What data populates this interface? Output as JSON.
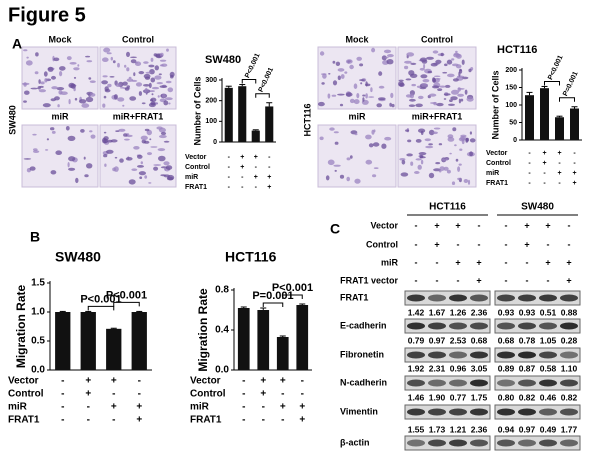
{
  "figure_title": "Figure 5",
  "panels": [
    "A",
    "B",
    "C"
  ],
  "images": [
    {
      "cell_line": "SW480",
      "labels": [
        "Mock",
        "Control",
        "miR",
        "miR+FRAT1"
      ]
    },
    {
      "cell_line": "HCT116",
      "labels": [
        "Mock",
        "Control",
        "miR",
        "miR+FRAT1"
      ]
    }
  ],
  "chart_data": [
    {
      "type": "bar",
      "title": "SW480",
      "ylabel": "Number of Cells",
      "values": [
        262,
        270,
        55,
        172
      ],
      "errors": [
        8,
        8,
        4,
        18
      ],
      "color": "#111111",
      "ylim": [
        0,
        300
      ],
      "yticks": [
        0,
        100,
        200,
        300
      ],
      "annotations": [
        "P<0.001",
        "P<0.001"
      ],
      "conditions": [
        {
          "name": "Vector",
          "marks": [
            "-",
            "+",
            "+",
            "-"
          ]
        },
        {
          "name": "Control",
          "marks": [
            "-",
            "+",
            "-",
            "-"
          ]
        },
        {
          "name": "miR",
          "marks": [
            "-",
            "-",
            "+",
            "+"
          ]
        },
        {
          "name": "FRAT1",
          "marks": [
            "-",
            "-",
            "-",
            "+"
          ]
        }
      ]
    },
    {
      "type": "bar",
      "title": "HCT116",
      "ylabel": "Number of Cells",
      "values": [
        128,
        148,
        65,
        90
      ],
      "errors": [
        8,
        5,
        3,
        5
      ],
      "color": "#111111",
      "ylim": [
        0,
        200
      ],
      "yticks": [
        0,
        50,
        100,
        150,
        200
      ],
      "annotations": [
        "P<0.001",
        "P=0.001"
      ],
      "conditions": [
        {
          "name": "Vector",
          "marks": [
            "-",
            "+",
            "+",
            "-"
          ]
        },
        {
          "name": "Control",
          "marks": [
            "-",
            "+",
            "-",
            "-"
          ]
        },
        {
          "name": "miR",
          "marks": [
            "-",
            "-",
            "+",
            "+"
          ]
        },
        {
          "name": "FRAT1",
          "marks": [
            "-",
            "-",
            "-",
            "+"
          ]
        }
      ]
    },
    {
      "type": "bar",
      "title": "SW480",
      "ylabel": "Migration Rate",
      "values": [
        1.0,
        1.0,
        0.71,
        1.0
      ],
      "errors": [
        0.01,
        0.01,
        0.01,
        0.01
      ],
      "color": "#111111",
      "ylim": [
        0,
        1.5
      ],
      "yticks": [
        {
          "value": 0,
          "label": "0.0"
        },
        {
          "value": 0.5,
          "label": "0.5"
        },
        {
          "value": 1,
          "label": "1.0"
        },
        {
          "value": 1.5,
          "label": "1.5"
        }
      ],
      "annotations": [
        "P<0.001",
        "P<0.001"
      ],
      "conditions": [
        {
          "name": "Vector",
          "marks": [
            "-",
            "+",
            "+",
            "-"
          ]
        },
        {
          "name": "Control",
          "marks": [
            "-",
            "+",
            "-",
            "-"
          ]
        },
        {
          "name": "miR",
          "marks": [
            "-",
            "-",
            "+",
            "+"
          ]
        },
        {
          "name": "FRAT1",
          "marks": [
            "-",
            "-",
            "-",
            "+"
          ]
        }
      ]
    },
    {
      "type": "bar",
      "title": "HCT116",
      "ylabel": "Migration Rate",
      "values": [
        0.62,
        0.6,
        0.33,
        0.65
      ],
      "errors": [
        0.01,
        0.02,
        0.01,
        0.01
      ],
      "color": "#111111",
      "ylim": [
        0,
        0.8
      ],
      "yticks": [
        {
          "value": 0,
          "label": "0.0"
        },
        {
          "value": 0.4,
          "label": "0.4"
        },
        {
          "value": 0.8,
          "label": "0.8"
        }
      ],
      "annotations": [
        "P=0.001",
        "P<0.001"
      ],
      "conditions": [
        {
          "name": "Vector",
          "marks": [
            "-",
            "+",
            "+",
            "-"
          ]
        },
        {
          "name": "Control",
          "marks": [
            "-",
            "+",
            "-",
            "-"
          ]
        },
        {
          "name": "miR",
          "marks": [
            "-",
            "-",
            "+",
            "+"
          ]
        },
        {
          "name": "FRAT1",
          "marks": [
            "-",
            "-",
            "-",
            "+"
          ]
        }
      ]
    }
  ],
  "blot": {
    "groups": [
      "HCT116",
      "SW480"
    ],
    "conditions": [
      {
        "name": "Vector",
        "marks": [
          [
            "-",
            "+",
            "+",
            "-"
          ],
          [
            "-",
            "+",
            "+",
            "-"
          ]
        ]
      },
      {
        "name": "Control",
        "marks": [
          [
            "-",
            "+",
            "-",
            "-"
          ],
          [
            "-",
            "+",
            "-",
            "-"
          ]
        ]
      },
      {
        "name": "miR",
        "marks": [
          [
            "-",
            "-",
            "+",
            "+"
          ],
          [
            "-",
            "-",
            "+",
            "+"
          ]
        ]
      },
      {
        "name": "FRAT1 vector",
        "marks": [
          [
            "-",
            "-",
            "-",
            "+"
          ],
          [
            "-",
            "-",
            "-",
            "+"
          ]
        ]
      }
    ],
    "proteins": [
      {
        "name": "FRAT1",
        "ratios": [
          [
            "1.42",
            "1.67",
            "1.26",
            "2.36"
          ],
          [
            "0.93",
            "0.93",
            "0.51",
            "0.88"
          ]
        ]
      },
      {
        "name": "E-cadherin",
        "ratios": [
          [
            "0.79",
            "0.97",
            "2.53",
            "0.68"
          ],
          [
            "0.68",
            "0.78",
            "1.05",
            "0.28"
          ]
        ]
      },
      {
        "name": "Fibronetin",
        "ratios": [
          [
            "1.92",
            "2.31",
            "0.96",
            "3.05"
          ],
          [
            "0.89",
            "0.87",
            "0.58",
            "1.10"
          ]
        ]
      },
      {
        "name": "N-cadherin",
        "ratios": [
          [
            "1.46",
            "1.90",
            "0.77",
            "1.75"
          ],
          [
            "0.80",
            "0.82",
            "0.46",
            "0.82"
          ]
        ]
      },
      {
        "name": "Vimentin",
        "ratios": [
          [
            "1.55",
            "1.73",
            "1.21",
            "2.36"
          ],
          [
            "0.94",
            "0.97",
            "0.49",
            "1.77"
          ]
        ]
      },
      {
        "name": "β-actin"
      }
    ]
  }
}
